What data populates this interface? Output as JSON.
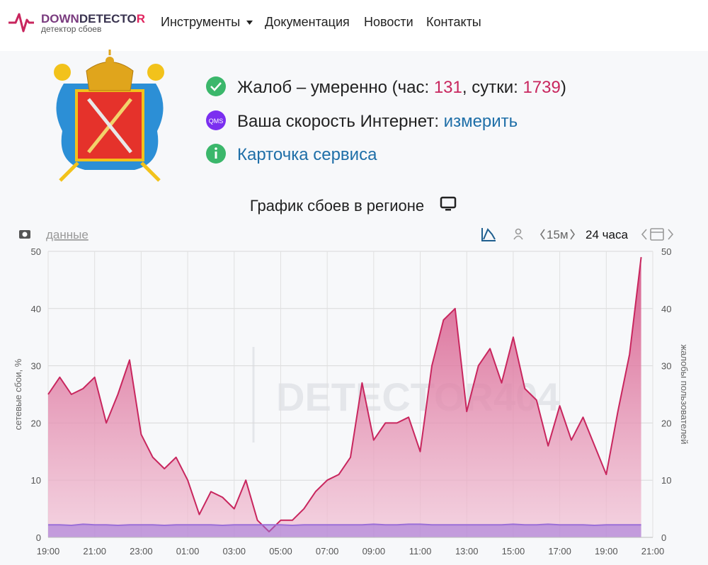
{
  "header": {
    "logo": [
      "DOWN",
      "DETECTO",
      "R"
    ],
    "logo_subtitle": "детектор сбоев",
    "nav": [
      "Инструменты",
      "Документация",
      "Новости",
      "Контакты"
    ]
  },
  "status": {
    "complaints": {
      "text": "Жалоб – умеренно (час: ",
      "hour": 131,
      "between": ", сутки: ",
      "day": 1739,
      "end": ")"
    },
    "speed": {
      "badge": "QMS",
      "text": "Ваша скорость Интернет: ",
      "link": "измерить"
    },
    "card": "Карточка сервиса"
  },
  "toolbar": {
    "data_link": "данные",
    "interval": "15м",
    "period": "24 часа"
  },
  "chart_data": {
    "type": "area",
    "title": "График сбоев в регионе",
    "ylabel": "сетевые сбои, %",
    "y2label": "жалобы пользователей",
    "watermark": "DETECTOR404",
    "categories": [
      "19:00",
      null,
      null,
      null,
      "21:00",
      null,
      null,
      null,
      "23:00",
      null,
      null,
      null,
      "01:00",
      null,
      null,
      null,
      "03:00",
      null,
      null,
      null,
      "05:00",
      null,
      null,
      null,
      "07:00",
      null,
      null,
      null,
      "09:00",
      null,
      null,
      null,
      "11:00",
      null,
      null,
      null,
      "13:00",
      null,
      null,
      null,
      "15:00",
      null,
      null,
      null,
      "17:00",
      null,
      null,
      null,
      "19:00",
      null,
      null,
      null,
      "21:00"
    ],
    "series": [
      {
        "color": "#c8265e",
        "axis": "y2",
        "values": [
          25,
          28,
          25,
          26,
          28,
          20,
          25,
          31,
          18,
          14,
          12,
          14,
          10,
          4,
          8,
          7,
          5,
          10,
          3,
          1,
          3,
          3,
          5,
          8,
          10,
          11,
          14,
          27,
          17,
          20,
          20,
          21,
          15,
          30,
          38,
          40,
          22,
          30,
          33,
          27,
          35,
          26,
          24,
          16,
          23,
          17,
          21,
          16,
          11,
          22,
          32,
          49,
          null
        ]
      },
      {
        "color": "#9b6fd8",
        "values": [
          2.2,
          2.2,
          2.1,
          2.3,
          2.2,
          2.2,
          2.1,
          2.2,
          2.2,
          2.2,
          2.1,
          2.2,
          2.2,
          2.2,
          2.2,
          2.1,
          2.2,
          2.2,
          2.2,
          2.2,
          2.2,
          2.1,
          2.2,
          2.2,
          2.2,
          2.2,
          2.2,
          2.2,
          2.3,
          2.2,
          2.2,
          2.3,
          2.3,
          2.2,
          2.2,
          2.2,
          2.2,
          2.2,
          2.2,
          2.2,
          2.3,
          2.2,
          2.2,
          2.3,
          2.2,
          2.2,
          2.2,
          2.1,
          2.2,
          2.2,
          2.2,
          2.2,
          null
        ]
      }
    ],
    "ylim": [
      0,
      50
    ],
    "yticks": [
      0,
      10,
      20,
      30,
      40,
      50
    ],
    "y2lim": [
      0,
      50
    ],
    "y2ticks": [
      0,
      10,
      20,
      30,
      40,
      50
    ],
    "grid": true
  }
}
